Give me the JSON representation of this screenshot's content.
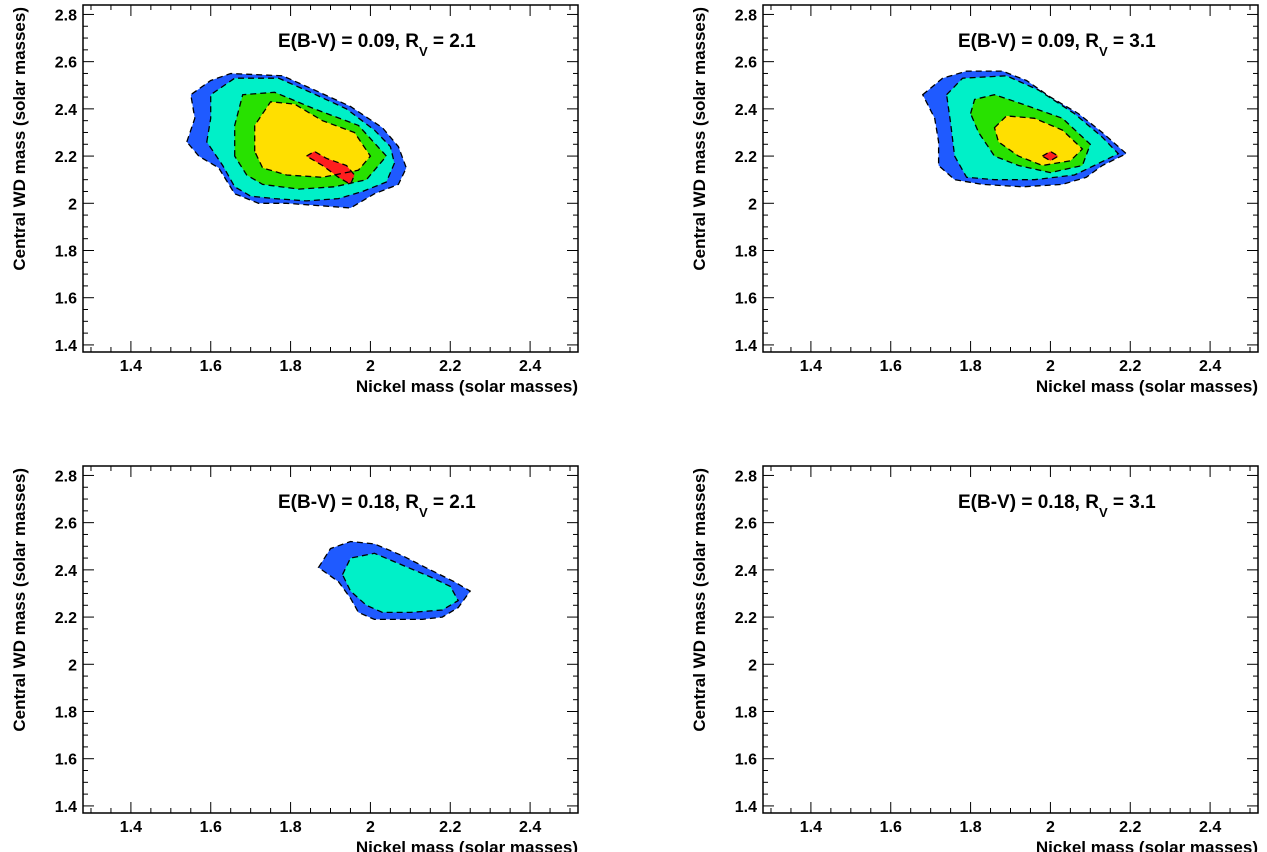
{
  "chart_data": [
    {
      "type": "contour",
      "panel": "top-left",
      "annotation": {
        "main": "E(B-V) = 0.09, R",
        "sub": "V",
        "tail": " = 2.1"
      },
      "xlabel": "Nickel mass (solar masses)",
      "ylabel": "Central WD mass (solar masses)",
      "xlim": [
        1.28,
        2.52
      ],
      "ylim": [
        1.37,
        2.84
      ],
      "xticks": [
        "1.4",
        "1.6",
        "1.8",
        "2",
        "2.2",
        "2.4"
      ],
      "yticks": [
        "1.4",
        "1.6",
        "1.8",
        "2",
        "2.2",
        "2.4",
        "2.6",
        "2.8"
      ],
      "levels": [
        {
          "color": "#1f5aff",
          "points": [
            [
              1.54,
              2.26
            ],
            [
              1.56,
              2.36
            ],
            [
              1.55,
              2.46
            ],
            [
              1.6,
              2.52
            ],
            [
              1.65,
              2.55
            ],
            [
              1.78,
              2.54
            ],
            [
              1.86,
              2.48
            ],
            [
              1.95,
              2.41
            ],
            [
              2.03,
              2.32
            ],
            [
              2.07,
              2.24
            ],
            [
              2.09,
              2.15
            ],
            [
              2.07,
              2.08
            ],
            [
              2.01,
              2.04
            ],
            [
              1.95,
              1.98
            ],
            [
              1.87,
              1.99
            ],
            [
              1.79,
              2.0
            ],
            [
              1.72,
              2.0
            ],
            [
              1.66,
              2.04
            ],
            [
              1.62,
              2.15
            ],
            [
              1.57,
              2.2
            ]
          ]
        },
        {
          "color": "#00f0c8",
          "points": [
            [
              1.59,
              2.26
            ],
            [
              1.6,
              2.36
            ],
            [
              1.6,
              2.46
            ],
            [
              1.66,
              2.53
            ],
            [
              1.77,
              2.53
            ],
            [
              1.85,
              2.47
            ],
            [
              1.94,
              2.4
            ],
            [
              2.01,
              2.31
            ],
            [
              2.05,
              2.24
            ],
            [
              2.06,
              2.17
            ],
            [
              2.04,
              2.09
            ],
            [
              1.98,
              2.05
            ],
            [
              1.92,
              2.02
            ],
            [
              1.84,
              2.01
            ],
            [
              1.76,
              2.02
            ],
            [
              1.7,
              2.03
            ],
            [
              1.66,
              2.07
            ],
            [
              1.63,
              2.16
            ]
          ]
        },
        {
          "color": "#28e100",
          "points": [
            [
              1.66,
              2.2
            ],
            [
              1.66,
              2.33
            ],
            [
              1.68,
              2.46
            ],
            [
              1.76,
              2.47
            ],
            [
              1.86,
              2.4
            ],
            [
              1.97,
              2.33
            ],
            [
              2.04,
              2.2
            ],
            [
              1.99,
              2.1
            ],
            [
              1.91,
              2.07
            ],
            [
              1.82,
              2.06
            ],
            [
              1.73,
              2.08
            ],
            [
              1.69,
              2.12
            ]
          ]
        },
        {
          "color": "#ffdf00",
          "points": [
            [
              1.71,
              2.22
            ],
            [
              1.71,
              2.33
            ],
            [
              1.75,
              2.43
            ],
            [
              1.81,
              2.42
            ],
            [
              1.88,
              2.35
            ],
            [
              1.96,
              2.3
            ],
            [
              2.0,
              2.2
            ],
            [
              1.97,
              2.14
            ],
            [
              1.88,
              2.11
            ],
            [
              1.79,
              2.12
            ],
            [
              1.73,
              2.15
            ]
          ]
        },
        {
          "color": "#ff1e1e",
          "points": [
            [
              1.84,
              2.2
            ],
            [
              1.86,
              2.22
            ],
            [
              1.89,
              2.19
            ],
            [
              1.94,
              2.16
            ],
            [
              1.96,
              2.12
            ],
            [
              1.95,
              2.08
            ],
            [
              1.92,
              2.11
            ],
            [
              1.88,
              2.16
            ]
          ]
        }
      ]
    },
    {
      "type": "contour",
      "panel": "top-right",
      "annotation": {
        "main": "E(B-V) = 0.09, R",
        "sub": "V",
        "tail": " = 3.1"
      },
      "xlabel": "Nickel mass (solar masses)",
      "ylabel": "Central WD mass (solar masses)",
      "xlim": [
        1.28,
        2.52
      ],
      "ylim": [
        1.37,
        2.84
      ],
      "xticks": [
        "1.4",
        "1.6",
        "1.8",
        "2",
        "2.2",
        "2.4"
      ],
      "yticks": [
        "1.4",
        "1.6",
        "1.8",
        "2",
        "2.2",
        "2.4",
        "2.6",
        "2.8"
      ],
      "levels": [
        {
          "color": "#1f5aff",
          "points": [
            [
              1.68,
              2.46
            ],
            [
              1.73,
              2.53
            ],
            [
              1.79,
              2.56
            ],
            [
              1.88,
              2.56
            ],
            [
              1.94,
              2.52
            ],
            [
              2.0,
              2.45
            ],
            [
              2.07,
              2.38
            ],
            [
              2.13,
              2.3
            ],
            [
              2.19,
              2.21
            ],
            [
              2.13,
              2.16
            ],
            [
              2.09,
              2.11
            ],
            [
              2.03,
              2.08
            ],
            [
              1.93,
              2.07
            ],
            [
              1.83,
              2.08
            ],
            [
              1.76,
              2.1
            ],
            [
              1.72,
              2.16
            ],
            [
              1.72,
              2.26
            ],
            [
              1.71,
              2.36
            ]
          ]
        },
        {
          "color": "#00f0c8",
          "points": [
            [
              1.74,
              2.46
            ],
            [
              1.78,
              2.53
            ],
            [
              1.89,
              2.54
            ],
            [
              1.97,
              2.48
            ],
            [
              2.06,
              2.38
            ],
            [
              2.13,
              2.28
            ],
            [
              2.17,
              2.21
            ],
            [
              2.11,
              2.16
            ],
            [
              2.06,
              2.12
            ],
            [
              1.96,
              2.1
            ],
            [
              1.86,
              2.1
            ],
            [
              1.79,
              2.11
            ],
            [
              1.76,
              2.2
            ],
            [
              1.75,
              2.34
            ]
          ]
        },
        {
          "color": "#28e100",
          "points": [
            [
              1.8,
              2.38
            ],
            [
              1.81,
              2.44
            ],
            [
              1.86,
              2.46
            ],
            [
              1.93,
              2.42
            ],
            [
              2.03,
              2.36
            ],
            [
              2.1,
              2.25
            ],
            [
              2.08,
              2.16
            ],
            [
              2.0,
              2.13
            ],
            [
              1.92,
              2.16
            ],
            [
              1.86,
              2.2
            ],
            [
              1.82,
              2.3
            ]
          ]
        },
        {
          "color": "#ffdf00",
          "points": [
            [
              1.86,
              2.32
            ],
            [
              1.89,
              2.37
            ],
            [
              1.96,
              2.36
            ],
            [
              2.03,
              2.31
            ],
            [
              2.08,
              2.23
            ],
            [
              2.05,
              2.18
            ],
            [
              1.98,
              2.16
            ],
            [
              1.92,
              2.2
            ],
            [
              1.87,
              2.26
            ]
          ]
        },
        {
          "color": "#ff1e1e",
          "points": [
            [
              1.98,
              2.2
            ],
            [
              2.0,
              2.22
            ],
            [
              2.02,
              2.2
            ],
            [
              2.0,
              2.18
            ]
          ]
        }
      ]
    },
    {
      "type": "contour",
      "panel": "bottom-left",
      "annotation": {
        "main": "E(B-V) = 0.18, R",
        "sub": "V",
        "tail": " = 2.1"
      },
      "xlabel": "Nickel mass (solar masses)",
      "ylabel": "Central WD mass (solar masses)",
      "xlim": [
        1.28,
        2.52
      ],
      "ylim": [
        1.37,
        2.84
      ],
      "xticks": [
        "1.4",
        "1.6",
        "1.8",
        "2",
        "2.2",
        "2.4"
      ],
      "yticks": [
        "1.4",
        "1.6",
        "1.8",
        "2",
        "2.2",
        "2.4",
        "2.6",
        "2.8"
      ],
      "levels": [
        {
          "color": "#1f5aff",
          "points": [
            [
              1.87,
              2.41
            ],
            [
              1.9,
              2.49
            ],
            [
              1.95,
              2.52
            ],
            [
              2.01,
              2.51
            ],
            [
              2.08,
              2.46
            ],
            [
              2.15,
              2.4
            ],
            [
              2.21,
              2.35
            ],
            [
              2.25,
              2.31
            ],
            [
              2.22,
              2.24
            ],
            [
              2.18,
              2.2
            ],
            [
              2.13,
              2.19
            ],
            [
              2.08,
              2.19
            ],
            [
              2.01,
              2.19
            ],
            [
              1.97,
              2.22
            ],
            [
              1.95,
              2.28
            ],
            [
              1.92,
              2.35
            ]
          ]
        },
        {
          "color": "#00f0c8",
          "points": [
            [
              1.93,
              2.38
            ],
            [
              1.95,
              2.45
            ],
            [
              2.01,
              2.47
            ],
            [
              2.08,
              2.42
            ],
            [
              2.15,
              2.37
            ],
            [
              2.2,
              2.33
            ],
            [
              2.22,
              2.27
            ],
            [
              2.18,
              2.23
            ],
            [
              2.1,
              2.22
            ],
            [
              2.03,
              2.22
            ],
            [
              1.99,
              2.25
            ],
            [
              1.95,
              2.31
            ]
          ]
        }
      ]
    },
    {
      "type": "contour",
      "panel": "bottom-right",
      "annotation": {
        "main": "E(B-V) = 0.18, R",
        "sub": "V",
        "tail": " = 3.1"
      },
      "xlabel": "Nickel mass (solar masses)",
      "ylabel": "Central WD mass (solar masses)",
      "xlim": [
        1.28,
        2.52
      ],
      "ylim": [
        1.37,
        2.84
      ],
      "xticks": [
        "1.4",
        "1.6",
        "1.8",
        "2",
        "2.2",
        "2.4"
      ],
      "yticks": [
        "1.4",
        "1.6",
        "1.8",
        "2",
        "2.2",
        "2.4",
        "2.6",
        "2.8"
      ],
      "levels": []
    }
  ]
}
